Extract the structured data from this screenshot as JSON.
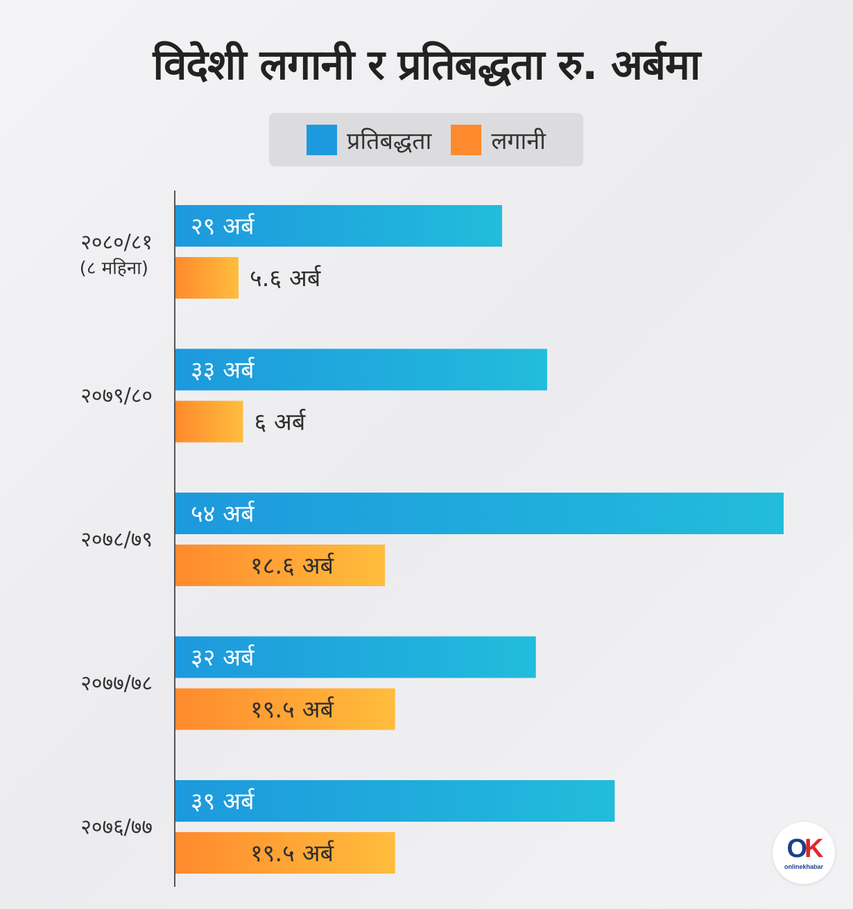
{
  "title": "विदेशी लगानी र प्रतिबद्धता रु. अर्बमा",
  "colors": {
    "commitment": "#1d99dd",
    "commitment_end": "#22bcdc",
    "investment": "#ff8a2e",
    "investment_end": "#ffbd3c"
  },
  "logo": {
    "mark_o": "O",
    "mark_k": "K",
    "text": "onlinekhabar"
  },
  "chart_data": {
    "type": "bar",
    "orientation": "horizontal",
    "title": "विदेशी लगानी र प्रतिबद्धता रु. अर्बमा",
    "unit": "अर्ब",
    "legend_position": "top-center",
    "grid": false,
    "xlim": [
      0,
      54
    ],
    "categories": [
      {
        "label": "२०८०/८१",
        "sublabel": "(८ महिना)"
      },
      {
        "label": "२०७९/८०",
        "sublabel": ""
      },
      {
        "label": "२०७८/७९",
        "sublabel": ""
      },
      {
        "label": "२०७७/७८",
        "sublabel": ""
      },
      {
        "label": "२०७६/७७",
        "sublabel": ""
      }
    ],
    "series": [
      {
        "name": "प्रतिबद्धता",
        "values": [
          29,
          33,
          54,
          32,
          39
        ],
        "labels": [
          "२९  अर्ब",
          "३३  अर्ब",
          "५४  अर्ब",
          "३२  अर्ब",
          "३९  अर्ब"
        ]
      },
      {
        "name": "लगानी",
        "values": [
          5.6,
          6,
          18.6,
          19.5,
          19.5
        ],
        "labels": [
          "५.६  अर्ब",
          "६  अर्ब",
          "१८.६  अर्ब",
          "१९.५  अर्ब",
          "१९.५  अर्ब"
        ]
      }
    ]
  }
}
